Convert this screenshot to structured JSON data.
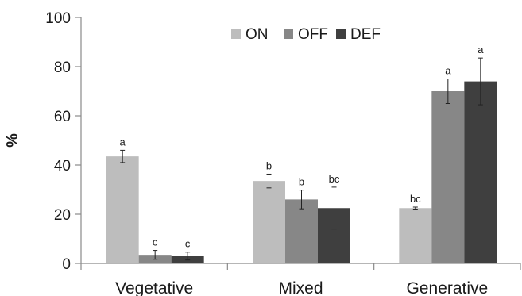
{
  "chart_data": {
    "type": "bar",
    "title": "",
    "xlabel": "",
    "ylabel": "%",
    "ylim": [
      0,
      100
    ],
    "yticks": [
      0,
      20,
      40,
      60,
      80,
      100
    ],
    "categories": [
      "Vegetative",
      "Mixed",
      "Generative"
    ],
    "series": [
      {
        "name": "ON",
        "color": "#bdbdbd",
        "values": [
          43.5,
          33.5,
          22.5
        ],
        "errors": [
          2.5,
          2.8,
          0.4
        ],
        "labels": [
          "a",
          "b",
          "bc"
        ]
      },
      {
        "name": "OFF",
        "color": "#878787",
        "values": [
          3.5,
          26.0,
          70.0
        ],
        "errors": [
          1.8,
          3.8,
          5.0
        ],
        "labels": [
          "c",
          "b",
          "a"
        ]
      },
      {
        "name": "DEF",
        "color": "#3f3f3f",
        "values": [
          3.0,
          22.5,
          74.0
        ],
        "errors": [
          1.6,
          8.5,
          9.5
        ],
        "labels": [
          "c",
          "bc",
          "a"
        ]
      }
    ],
    "legend": "top-center",
    "grid": false
  }
}
